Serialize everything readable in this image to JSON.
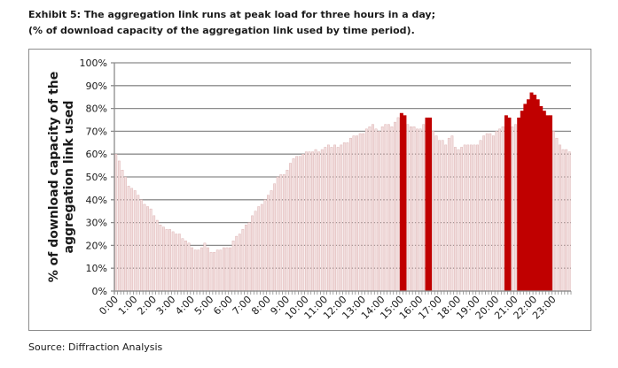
{
  "header": {
    "title": "Exhibit 5: The aggregation link runs at peak load for three hours in a day;",
    "subtitle": "(% of download capacity of the aggregation link used by time period)."
  },
  "footer": {
    "source": "Source: Diffraction Analysis"
  },
  "chart_data": {
    "type": "bar",
    "title": "",
    "xlabel": "",
    "ylabel": "% of download capacity of the aggregation link used",
    "ylabel_lines": [
      "% of download capacity of the",
      "aggregation link used"
    ],
    "ylim": [
      0,
      100
    ],
    "yticks": [
      "0%",
      "10%",
      "20%",
      "30%",
      "40%",
      "50%",
      "60%",
      "70%",
      "80%",
      "90%",
      "100%"
    ],
    "xticks": [
      "0:00",
      "1:00",
      "2:00",
      "3:00",
      "4:00",
      "5:00",
      "6:00",
      "7:00",
      "8:00",
      "9:00",
      "10:00",
      "11:00",
      "12:00",
      "13:00",
      "14:00",
      "15:00",
      "16:00",
      "17:00",
      "18:00",
      "19:00",
      "20:00",
      "21:00",
      "22:00",
      "23:00"
    ],
    "interval_minutes": 10,
    "grid": true,
    "colors": {
      "normal": "#f2dede",
      "normal_edge": "#d8a8a8",
      "peak": "#c00000",
      "grid": "#8c8c8c"
    },
    "values": [
      60,
      57,
      53,
      50,
      46,
      45,
      44,
      42,
      40,
      38,
      37,
      36,
      33,
      31,
      29,
      28,
      27,
      27,
      26,
      25,
      25,
      23,
      22,
      21,
      19,
      18,
      18,
      19,
      21,
      19,
      17,
      17,
      18,
      18,
      19,
      19,
      19,
      22,
      24,
      25,
      27,
      29,
      30,
      33,
      35,
      37,
      38,
      40,
      42,
      44,
      47,
      50,
      51,
      51,
      53,
      56,
      58,
      59,
      59,
      60,
      61,
      61,
      61,
      62,
      61,
      62,
      63,
      64,
      63,
      64,
      63,
      64,
      65,
      65,
      67,
      68,
      68,
      69,
      69,
      71,
      72,
      73,
      71,
      70,
      72,
      73,
      73,
      72,
      74,
      76,
      78,
      77,
      73,
      72,
      72,
      71,
      71,
      73,
      76,
      76,
      70,
      68,
      66,
      66,
      64,
      67,
      68,
      63,
      62,
      63,
      64,
      64,
      64,
      64,
      64,
      66,
      68,
      69,
      69,
      68,
      70,
      71,
      72,
      77,
      76,
      72,
      73,
      76,
      79,
      82,
      84,
      87,
      86,
      84,
      81,
      79,
      77,
      77,
      70,
      67,
      64,
      62,
      62,
      61
    ],
    "peak": [
      0,
      0,
      0,
      0,
      0,
      0,
      0,
      0,
      0,
      0,
      0,
      0,
      0,
      0,
      0,
      0,
      0,
      0,
      0,
      0,
      0,
      0,
      0,
      0,
      0,
      0,
      0,
      0,
      0,
      0,
      0,
      0,
      0,
      0,
      0,
      0,
      0,
      0,
      0,
      0,
      0,
      0,
      0,
      0,
      0,
      0,
      0,
      0,
      0,
      0,
      0,
      0,
      0,
      0,
      0,
      0,
      0,
      0,
      0,
      0,
      0,
      0,
      0,
      0,
      0,
      0,
      0,
      0,
      0,
      0,
      0,
      0,
      0,
      0,
      0,
      0,
      0,
      0,
      0,
      0,
      0,
      0,
      0,
      0,
      0,
      0,
      0,
      0,
      0,
      0,
      1,
      1,
      0,
      0,
      0,
      0,
      0,
      0,
      1,
      1,
      0,
      0,
      0,
      0,
      0,
      0,
      0,
      0,
      0,
      0,
      0,
      0,
      0,
      0,
      0,
      0,
      0,
      0,
      0,
      0,
      0,
      0,
      0,
      1,
      1,
      0,
      0,
      1,
      1,
      1,
      1,
      1,
      1,
      1,
      1,
      1,
      1,
      1,
      0,
      0,
      0,
      0,
      0,
      0
    ]
  }
}
